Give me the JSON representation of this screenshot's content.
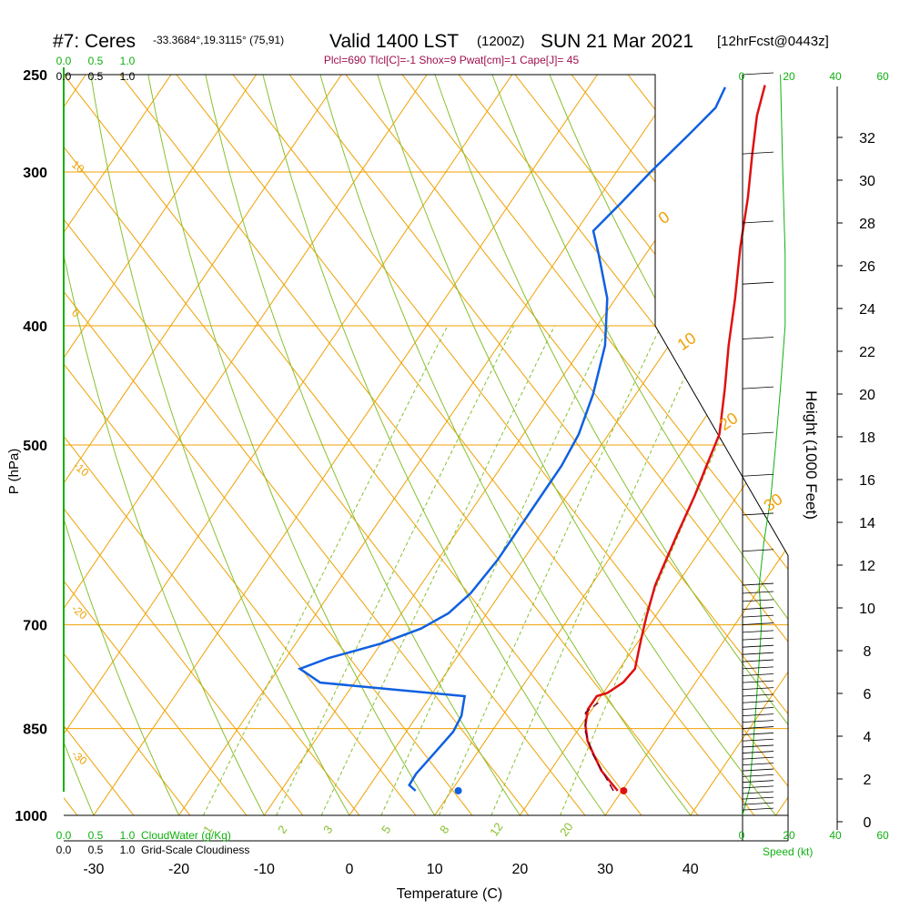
{
  "header": {
    "station": "#7: Ceres",
    "coords": "-33.3684°,19.3115° (75,91)",
    "valid": "Valid 1400 LST",
    "zulu": "(1200Z)",
    "date": "SUN 21 Mar 2021",
    "forecast": "[12hrFcst@0443z]",
    "params": "Plcl=690 Tlcl[C]=-1 Shox=9 Pwat[cm]=1 Cape[J]= 45"
  },
  "colors": {
    "temperature": "#e01010",
    "dewpoint": "#1060e0",
    "isobar_isotherm": "#f0a000",
    "dry_adiabat": "#88c030",
    "mixing_ratio": "#88c030",
    "green_text": "#10b010",
    "params_text": "#a01050"
  },
  "chart_data": {
    "type": "line",
    "xlabel": "Temperature (C)",
    "ylabel": "P (hPa)",
    "y2label": "Height (1000 Feet)",
    "x_ticks": [
      "-30",
      "-20",
      "-10",
      "0",
      "10",
      "20",
      "30",
      "40"
    ],
    "x_tick_values": [
      -30,
      -20,
      -10,
      0,
      10,
      20,
      30,
      40
    ],
    "y_ticks": [
      "250",
      "300",
      "400",
      "500",
      "700",
      "850",
      "1000"
    ],
    "y_tick_values": [
      250,
      300,
      400,
      500,
      700,
      850,
      1000
    ],
    "height_ticks": [
      "0",
      "2",
      "4",
      "6",
      "8",
      "10",
      "12",
      "14",
      "16",
      "18",
      "20",
      "22",
      "24",
      "26",
      "28",
      "30",
      "32"
    ],
    "isotherm_labels": [
      "0",
      "10",
      "20",
      "30"
    ],
    "left_isotherm_labels": [
      "10",
      "0",
      "-10",
      "-20",
      "-30"
    ],
    "mixing_ratio_labels": [
      "1",
      "2",
      "3",
      "5",
      "8",
      "12",
      "20"
    ],
    "cloud_scale_top": [
      "0.0",
      "0.5",
      "1.0"
    ],
    "cloud_scale_top_black": [
      "0.0",
      "0.5",
      "1.0"
    ],
    "cloud_scale_bottom": [
      "0.0",
      "0.5",
      "1.0"
    ],
    "cloud_water_label": "CloudWater (g/Kg)",
    "cloudiness_label": "Grid-Scale Cloudiness",
    "speed_ticks": [
      "0",
      "20",
      "40",
      "60"
    ],
    "speed_label": "Speed (kt)",
    "series": [
      {
        "name": "Temperature",
        "points": [
          [
            29.5,
            955
          ],
          [
            28.0,
            940
          ],
          [
            26.0,
            920
          ],
          [
            24.0,
            895
          ],
          [
            22.0,
            870
          ],
          [
            20.5,
            845
          ],
          [
            19.5,
            820
          ],
          [
            19.5,
            800
          ],
          [
            20.5,
            795
          ],
          [
            21.5,
            780
          ],
          [
            21.8,
            760
          ],
          [
            21.0,
            740
          ],
          [
            20.2,
            720
          ],
          [
            19.0,
            690
          ],
          [
            17.5,
            650
          ],
          [
            17.0,
            630
          ],
          [
            16.0,
            590
          ],
          [
            15.0,
            550
          ],
          [
            14.0,
            520
          ],
          [
            13.0,
            490
          ],
          [
            10.0,
            450
          ],
          [
            7.0,
            415
          ],
          [
            4.0,
            380
          ],
          [
            0.5,
            345
          ],
          [
            -2.5,
            315
          ],
          [
            -5.5,
            290
          ],
          [
            -8.0,
            270
          ],
          [
            -9.5,
            255
          ]
        ]
      },
      {
        "name": "Dewpoint",
        "points": [
          [
            5.8,
            955
          ],
          [
            4.6,
            945
          ],
          [
            4.5,
            925
          ],
          [
            5.0,
            890
          ],
          [
            5.5,
            855
          ],
          [
            5.2,
            830
          ],
          [
            4.0,
            800
          ],
          [
            -5.0,
            790
          ],
          [
            -14.0,
            780
          ],
          [
            -17.5,
            760
          ],
          [
            -15.0,
            745
          ],
          [
            -10.0,
            725
          ],
          [
            -6.5,
            705
          ],
          [
            -4.5,
            685
          ],
          [
            -3.5,
            660
          ],
          [
            -3.0,
            620
          ],
          [
            -3.0,
            560
          ],
          [
            -3.0,
            520
          ],
          [
            -3.5,
            490
          ],
          [
            -5.0,
            455
          ],
          [
            -7.5,
            415
          ],
          [
            -11.0,
            380
          ],
          [
            -15.5,
            350
          ],
          [
            -18.0,
            335
          ],
          [
            -17.0,
            318
          ],
          [
            -16.0,
            300
          ],
          [
            -14.5,
            280
          ],
          [
            -13.5,
            266
          ],
          [
            -14.0,
            256
          ]
        ]
      },
      {
        "name": "Parcel",
        "points": [
          [
            29.0,
            955
          ],
          [
            26.5,
            925
          ],
          [
            23.5,
            890
          ],
          [
            21.0,
            855
          ],
          [
            19.5,
            825
          ],
          [
            20.2,
            810
          ]
        ]
      }
    ],
    "surface_temperature": 30.2,
    "surface_dewpoint": 10.8,
    "surface_pressure": 955,
    "wind_speed_profile": [
      [
        1000,
        0
      ],
      [
        950,
        3
      ],
      [
        900,
        4
      ],
      [
        850,
        5
      ],
      [
        800,
        6
      ],
      [
        750,
        7
      ],
      [
        700,
        8
      ],
      [
        650,
        7
      ],
      [
        600,
        9
      ],
      [
        550,
        12
      ],
      [
        500,
        14
      ],
      [
        450,
        16
      ],
      [
        400,
        18
      ],
      [
        350,
        18
      ],
      [
        300,
        17
      ],
      [
        250,
        16
      ]
    ]
  }
}
